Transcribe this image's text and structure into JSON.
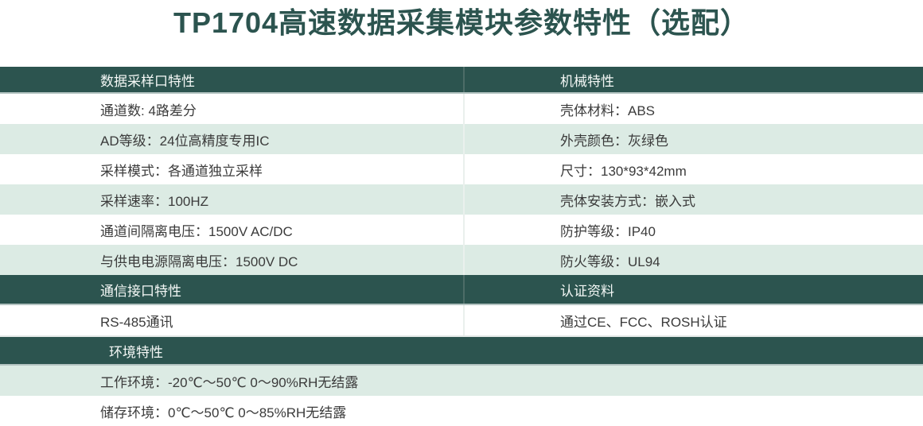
{
  "title": "TP1704高速数据采集模块参数特性（选配）",
  "colors": {
    "header_bg": "#2c544f",
    "header_text": "#f4f8f6",
    "row_alt_bg": "#dcebe4",
    "row_text": "#3b3b3b",
    "title_color": "#2c544f"
  },
  "table": {
    "sections": [
      {
        "left_header": "数据采样口特性",
        "right_header": "机械特性",
        "rows": [
          {
            "left": "通道数: 4路差分",
            "right": "壳体材料：ABS"
          },
          {
            "left": "AD等级：24位高精度专用IC",
            "right": "外壳颜色：灰绿色"
          },
          {
            "left": "采样模式：各通道独立采样",
            "right": "尺寸：130*93*42mm"
          },
          {
            "left": "采样速率：100HZ",
            "right": "壳体安装方式：嵌入式"
          },
          {
            "left": "通道间隔离电压：1500V AC/DC",
            "right": "防护等级：IP40"
          },
          {
            "left": "与供电电源隔离电压：1500V DC",
            "right": "防火等级：UL94"
          }
        ]
      },
      {
        "left_header": "通信接口特性",
        "right_header": "认证资料",
        "rows": [
          {
            "left": "RS-485通讯",
            "right": "通过CE、FCC、ROSH认证"
          }
        ]
      },
      {
        "header": "环境特性",
        "rows": [
          "工作环境：-20℃～50℃ 0～90%RH无结露",
          "储存环境：0℃～50℃ 0～85%RH无结露"
        ]
      }
    ]
  }
}
